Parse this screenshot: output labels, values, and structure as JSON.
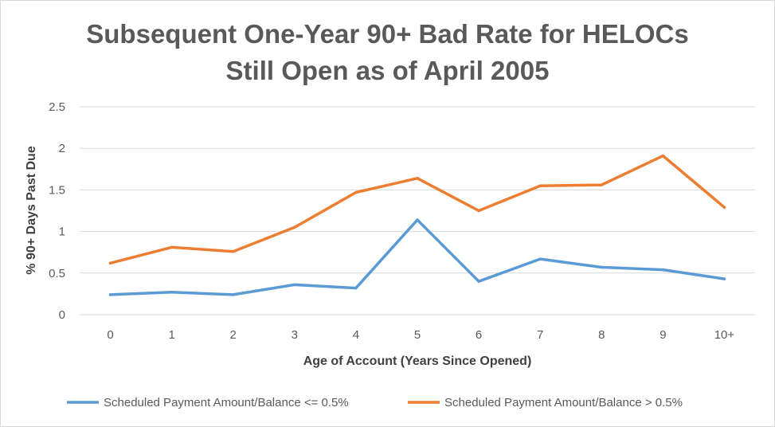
{
  "chart_data": {
    "type": "line",
    "title": [
      "Subsequent One-Year 90+ Bad Rate for HELOCs",
      "Still Open as of April 2005"
    ],
    "xlabel": "Age of  Account (Years Since Opened)",
    "ylabel": "% 90+ Days Past Due",
    "categories": [
      "0",
      "1",
      "2",
      "3",
      "4",
      "5",
      "6",
      "7",
      "8",
      "9",
      "10+"
    ],
    "ylim": [
      0,
      2.5
    ],
    "yticks": [
      "0",
      "0.5",
      "1",
      "1.5",
      "2",
      "2.5"
    ],
    "grid": true,
    "legend_position": "bottom",
    "series": [
      {
        "name": "Scheduled Payment Amount/Balance <= 0.5%",
        "color": "#5b9bd5",
        "values": [
          0.24,
          0.27,
          0.24,
          0.36,
          0.32,
          1.14,
          0.4,
          0.67,
          0.57,
          0.54,
          0.43
        ]
      },
      {
        "name": "Scheduled Payment Amount/Balance > 0.5%",
        "color": "#ed7d31",
        "values": [
          0.62,
          0.81,
          0.76,
          1.05,
          1.47,
          1.64,
          1.25,
          1.55,
          1.56,
          1.91,
          1.29
        ]
      }
    ]
  }
}
